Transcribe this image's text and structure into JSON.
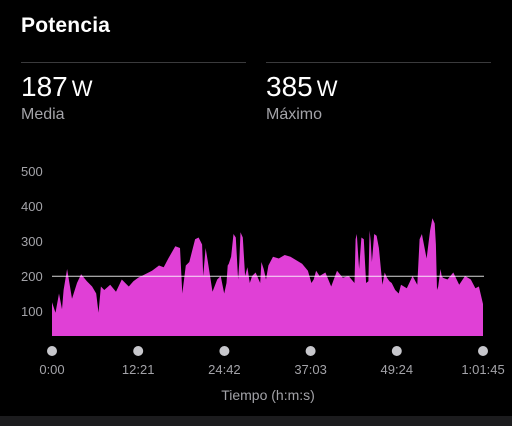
{
  "header": {
    "title": "Potencia"
  },
  "stats": {
    "average": {
      "value": "187",
      "unit": "W",
      "label": "Media"
    },
    "maximum": {
      "value": "385",
      "unit": "W",
      "label": "Máximo"
    }
  },
  "colors": {
    "fill": "#e040d6",
    "reference_line": "#ffffff",
    "tick_text": "#a3a3a8",
    "axis_dot": "#c7c7cc",
    "divider": "#3a3a3c"
  },
  "chart_data": {
    "type": "area",
    "title": "",
    "xlabel": "Tiempo (h:m:s)",
    "ylabel": "",
    "units": "W",
    "xlim": [
      0,
      3705
    ],
    "ylim": [
      35,
      525
    ],
    "y_ticks": [
      100,
      200,
      300,
      400,
      500
    ],
    "x_ticks": [
      {
        "value": 0,
        "label": "0:00"
      },
      {
        "value": 741,
        "label": "12:21"
      },
      {
        "value": 1482,
        "label": "24:42"
      },
      {
        "value": 2223,
        "label": "37:03"
      },
      {
        "value": 2964,
        "label": "49:24"
      },
      {
        "value": 3705,
        "label": "1:01:45"
      }
    ],
    "reference_line": {
      "value": 199,
      "label": ""
    },
    "grid": false,
    "legend": "none",
    "series": [
      {
        "x": [
          0,
          30,
          60,
          86,
          100,
          130,
          172,
          215,
          250,
          300,
          345,
          380,
          400,
          420,
          450,
          500,
          550,
          600,
          660,
          700,
          740,
          800,
          860,
          920,
          960,
          1000,
          1060,
          1100,
          1120,
          1150,
          1180,
          1230,
          1260,
          1290,
          1300,
          1320,
          1340,
          1380,
          1420,
          1450,
          1480,
          1500,
          1510,
          1520,
          1540,
          1560,
          1580,
          1600,
          1610,
          1620,
          1640,
          1660,
          1680,
          1700,
          1720,
          1750,
          1790,
          1800,
          1820,
          1840,
          1860,
          1900,
          1950,
          2000,
          2050,
          2100,
          2150,
          2200,
          2230,
          2250,
          2270,
          2300,
          2350,
          2400,
          2450,
          2500,
          2550,
          2600,
          2610,
          2620,
          2640,
          2660,
          2680,
          2700,
          2720,
          2730,
          2740,
          2750,
          2770,
          2790,
          2810,
          2840,
          2860,
          2880,
          2900,
          2920,
          2950,
          2980,
          3000,
          3050,
          3100,
          3140,
          3160,
          3180,
          3220,
          3250,
          3270,
          3290,
          3300,
          3310,
          3320,
          3340,
          3350,
          3360,
          3400,
          3450,
          3500,
          3550,
          3600,
          3640,
          3670,
          3705
        ],
        "y": [
          125,
          95,
          150,
          105,
          160,
          220,
          135,
          180,
          205,
          185,
          170,
          150,
          95,
          170,
          160,
          175,
          155,
          190,
          170,
          185,
          195,
          205,
          215,
          230,
          225,
          250,
          285,
          280,
          150,
          230,
          240,
          305,
          310,
          290,
          200,
          280,
          240,
          155,
          190,
          200,
          150,
          180,
          230,
          235,
          255,
          320,
          310,
          190,
          240,
          325,
          310,
          200,
          225,
          180,
          200,
          210,
          180,
          240,
          220,
          190,
          230,
          255,
          250,
          260,
          255,
          245,
          235,
          215,
          180,
          190,
          215,
          200,
          210,
          170,
          215,
          195,
          200,
          180,
          305,
          320,
          220,
          310,
          305,
          180,
          185,
          330,
          300,
          240,
          320,
          315,
          280,
          175,
          210,
          195,
          185,
          180,
          160,
          150,
          175,
          165,
          200,
          175,
          305,
          320,
          250,
          330,
          365,
          350,
          290,
          160,
          170,
          220,
          200,
          195,
          190,
          210,
          175,
          200,
          190,
          165,
          170,
          120
        ]
      }
    ]
  }
}
